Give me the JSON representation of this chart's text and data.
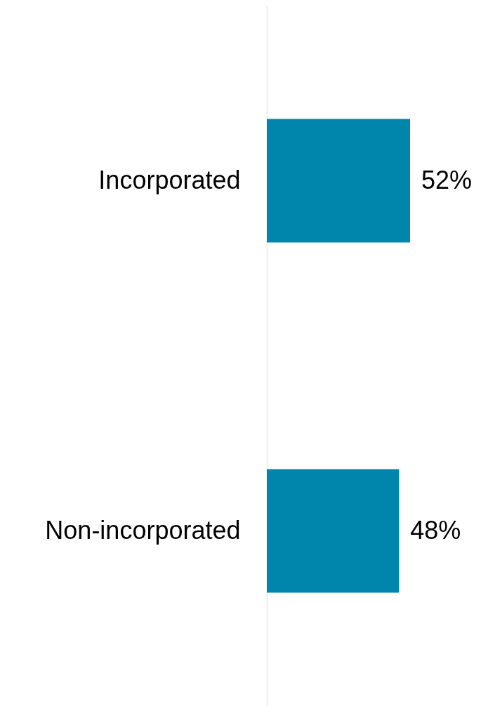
{
  "chart_data": {
    "type": "bar",
    "orientation": "horizontal",
    "categories": [
      "Incorporated",
      "Non-incorporated"
    ],
    "values": [
      52,
      48
    ],
    "value_labels": [
      "52%",
      "48%"
    ],
    "color": "#0085ad"
  }
}
